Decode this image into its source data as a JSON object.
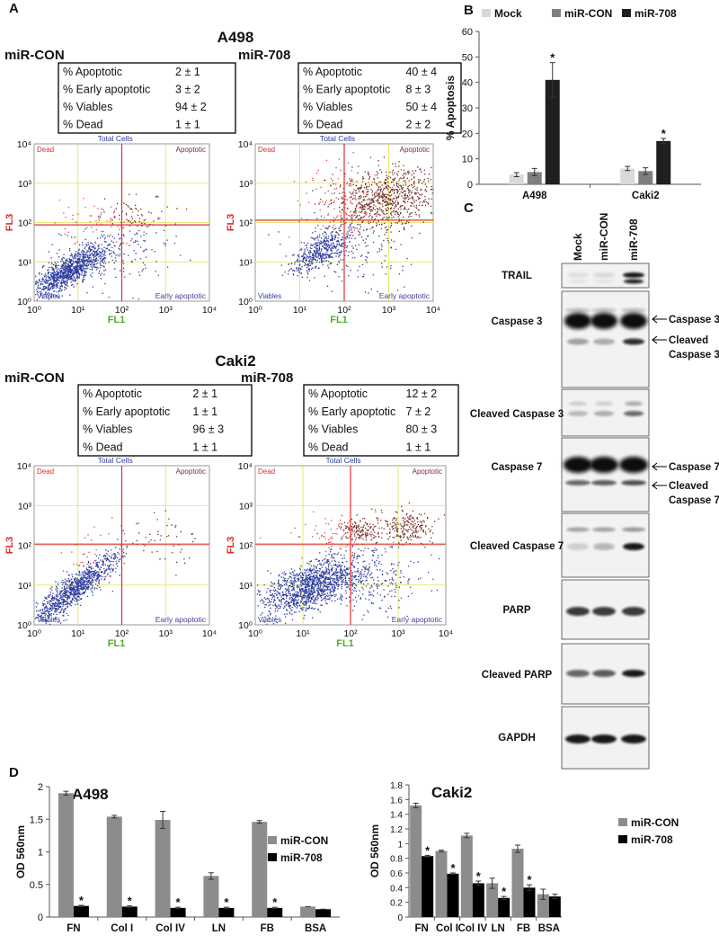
{
  "figure": {
    "flow": {
      "label": "A",
      "ticks": [
        "10⁰",
        "10¹",
        "10²",
        "10³",
        "10⁴"
      ],
      "x_axis": "FL1",
      "y_axis": "FL3",
      "quadrants": {
        "dead": "Dead",
        "total": "Total Cells",
        "apoptotic": "Apoptotic",
        "viables": "Viables",
        "early": "Early apoptotic"
      },
      "groups": [
        {
          "title": "A498",
          "plots": [
            {
              "name": "miR-CON",
              "stats": [
                {
                  "label": "% Apoptotic",
                  "value": "2 ± 1"
                },
                {
                  "label": "% Early apoptotic",
                  "value": "3 ± 2"
                },
                {
                  "label": "% Viables",
                  "value": "94 ± 2"
                },
                {
                  "label": "% Dead",
                  "value": "1 ± 1"
                }
              ]
            },
            {
              "name": "miR-708",
              "stats": [
                {
                  "label": "% Apoptotic",
                  "value": "40 ± 4"
                },
                {
                  "label": "% Early apoptotic",
                  "value": "8 ± 3"
                },
                {
                  "label": "% Viables",
                  "value": "50 ± 4"
                },
                {
                  "label": "% Dead",
                  "value": "2 ± 2"
                }
              ]
            }
          ]
        },
        {
          "title": "Caki2",
          "plots": [
            {
              "name": "miR-CON",
              "stats": [
                {
                  "label": "% Apoptotic",
                  "value": "2 ± 1"
                },
                {
                  "label": "% Early apoptotic",
                  "value": "1 ± 1"
                },
                {
                  "label": "% Viables",
                  "value": "96 ± 3"
                },
                {
                  "label": "% Dead",
                  "value": "1 ± 1"
                }
              ]
            },
            {
              "name": "miR-708",
              "stats": [
                {
                  "label": "% Apoptotic",
                  "value": "12 ± 2"
                },
                {
                  "label": "% Early apoptotic",
                  "value": "7 ± 2"
                },
                {
                  "label": "% Viables",
                  "value": "80 ± 3"
                },
                {
                  "label": "% Dead",
                  "value": "1 ± 1"
                }
              ]
            }
          ]
        }
      ]
    },
    "western": {
      "label": "C",
      "lanes": [
        "Mock",
        "miR-CON",
        "miR-708"
      ],
      "blots": [
        "TRAIL",
        "Caspase 3",
        "Cleaved Caspase 3",
        "Caspase 7",
        "Cleaved Caspase 7",
        "PARP",
        "Cleaved PARP",
        "GAPDH"
      ],
      "arrows": [
        {
          "lines": [
            "Caspase 3"
          ]
        },
        {
          "lines": [
            "Cleaved",
            "Caspase 3"
          ]
        },
        {
          "lines": [
            "Caspase 7"
          ]
        },
        {
          "lines": [
            "Cleaved",
            "Caspase 7"
          ]
        }
      ]
    }
  },
  "chart_data": [
    {
      "type": "bar",
      "panel": "B",
      "y_label": "% Apoptosis",
      "categories": [
        "A498",
        "Caki2"
      ],
      "ylim": [
        0,
        60
      ],
      "yticks": [
        0,
        10,
        20,
        30,
        40,
        50,
        60
      ],
      "legend": "top",
      "series": [
        {
          "name": "Mock",
          "color": "#d9d9d9",
          "values": [
            3.8,
            6.2
          ],
          "errors": [
            0.8,
            0.8
          ]
        },
        {
          "name": "miR-CON",
          "color": "#7f7f7f",
          "values": [
            4.8,
            5.2
          ],
          "errors": [
            1.4,
            1.3
          ]
        },
        {
          "name": "miR-708",
          "color": "#1f1f1f",
          "values": [
            41,
            17
          ],
          "errors": [
            6.8,
            1.0
          ],
          "markers": [
            "*",
            "*"
          ]
        }
      ]
    },
    {
      "type": "bar",
      "panel": "D",
      "title": "A498",
      "y_label": "OD 560nm",
      "categories": [
        "FN",
        "Col I",
        "Col IV",
        "LN",
        "FB",
        "BSA"
      ],
      "ylim": [
        0,
        2
      ],
      "yticks": [
        0,
        0.5,
        1,
        1.5,
        2
      ],
      "legend": "right",
      "series": [
        {
          "name": "miR-CON",
          "color": "#8c8c8c",
          "values": [
            1.9,
            1.54,
            1.49,
            0.63,
            1.46,
            0.16
          ],
          "errors": [
            0.03,
            0.02,
            0.13,
            0.05,
            0.02,
            0
          ]
        },
        {
          "name": "miR-708",
          "color": "#000000",
          "values": [
            0.17,
            0.16,
            0.14,
            0.14,
            0.14,
            0.12
          ],
          "errors": [
            0.01,
            0.01,
            0.01,
            0.01,
            0.01,
            0
          ],
          "markers": [
            "*",
            "*",
            "*",
            "*",
            "*",
            null
          ]
        }
      ]
    },
    {
      "type": "bar",
      "title": "Caki2",
      "y_label": "OD 560nm",
      "categories": [
        "FN",
        "Col I",
        "Col IV",
        "LN",
        "FB",
        "BSA"
      ],
      "ylim": [
        0,
        1.8
      ],
      "yticks": [
        0,
        0.2,
        0.4,
        0.6,
        0.8,
        1,
        1.2,
        1.4,
        1.6,
        1.8
      ],
      "legend": "right",
      "series": [
        {
          "name": "miR-CON",
          "color": "#8c8c8c",
          "values": [
            1.52,
            0.9,
            1.11,
            0.46,
            0.93,
            0.31
          ],
          "errors": [
            0.03,
            0.01,
            0.03,
            0.07,
            0.05,
            0.07
          ]
        },
        {
          "name": "miR-708",
          "color": "#000000",
          "values": [
            0.83,
            0.59,
            0.46,
            0.26,
            0.4,
            0.28
          ],
          "errors": [
            0.01,
            0.01,
            0.03,
            0.02,
            0.04,
            0.03
          ],
          "markers": [
            "*",
            "*",
            "*",
            "*",
            "*",
            null
          ]
        }
      ]
    }
  ]
}
